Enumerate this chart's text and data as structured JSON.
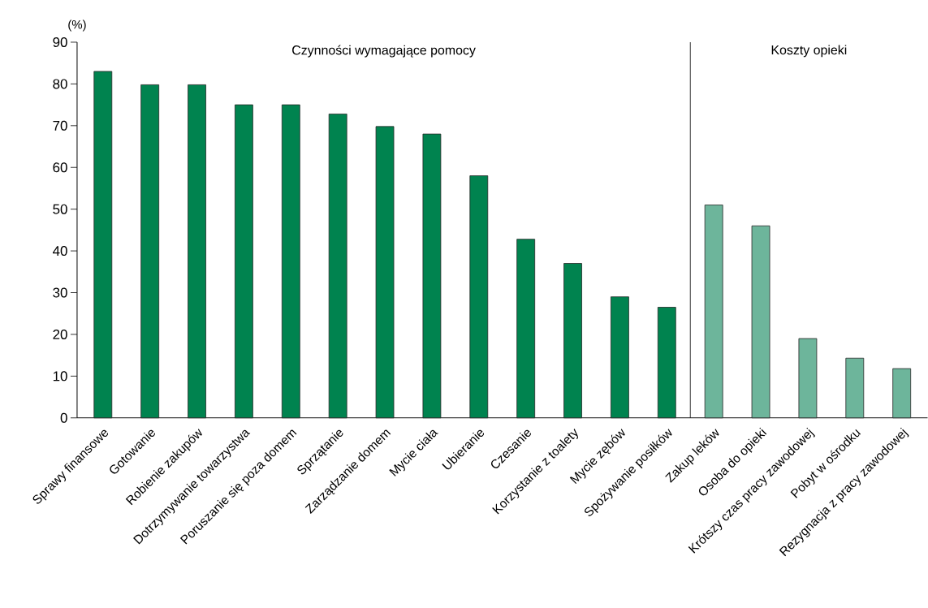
{
  "chart_data": {
    "type": "bar",
    "ylabel": "(%)",
    "categories": [
      "Sprawy finansowe",
      "Gotowanie",
      "Robienie zakupów",
      "Dotrzymywanie towarzystwa",
      "Poruszanie się poza domem",
      "Sprzątanie",
      "Zarządzanie domem",
      "Mycie ciała",
      "Ubieranie",
      "Czesanie",
      "Korzystanie z toalety",
      "Mycie zębów",
      "Spożywanie posiłków",
      "Zakup leków",
      "Osoba do opieki",
      "Krótszy czas pracy zawodowej",
      "Pobyt w ośrodku",
      "Rezygnacja z pracy zawodowej"
    ],
    "values": [
      83,
      79.8,
      79.8,
      75,
      75,
      72.8,
      69.8,
      68,
      58,
      42.8,
      37,
      29,
      26.5,
      51,
      46,
      19,
      14.3,
      11.8
    ],
    "colors": [
      "#00834f",
      "#00834f",
      "#00834f",
      "#00834f",
      "#00834f",
      "#00834f",
      "#00834f",
      "#00834f",
      "#00834f",
      "#00834f",
      "#00834f",
      "#00834f",
      "#00834f",
      "#6db59b",
      "#6db59b",
      "#6db59b",
      "#6db59b",
      "#6db59b"
    ],
    "ylim": [
      0,
      90
    ],
    "yticks": [
      0,
      10,
      20,
      30,
      40,
      50,
      60,
      70,
      80,
      90
    ],
    "annotations": [
      "Czynności wymagające pomocy",
      "Koszty opieki"
    ],
    "grid": false
  }
}
